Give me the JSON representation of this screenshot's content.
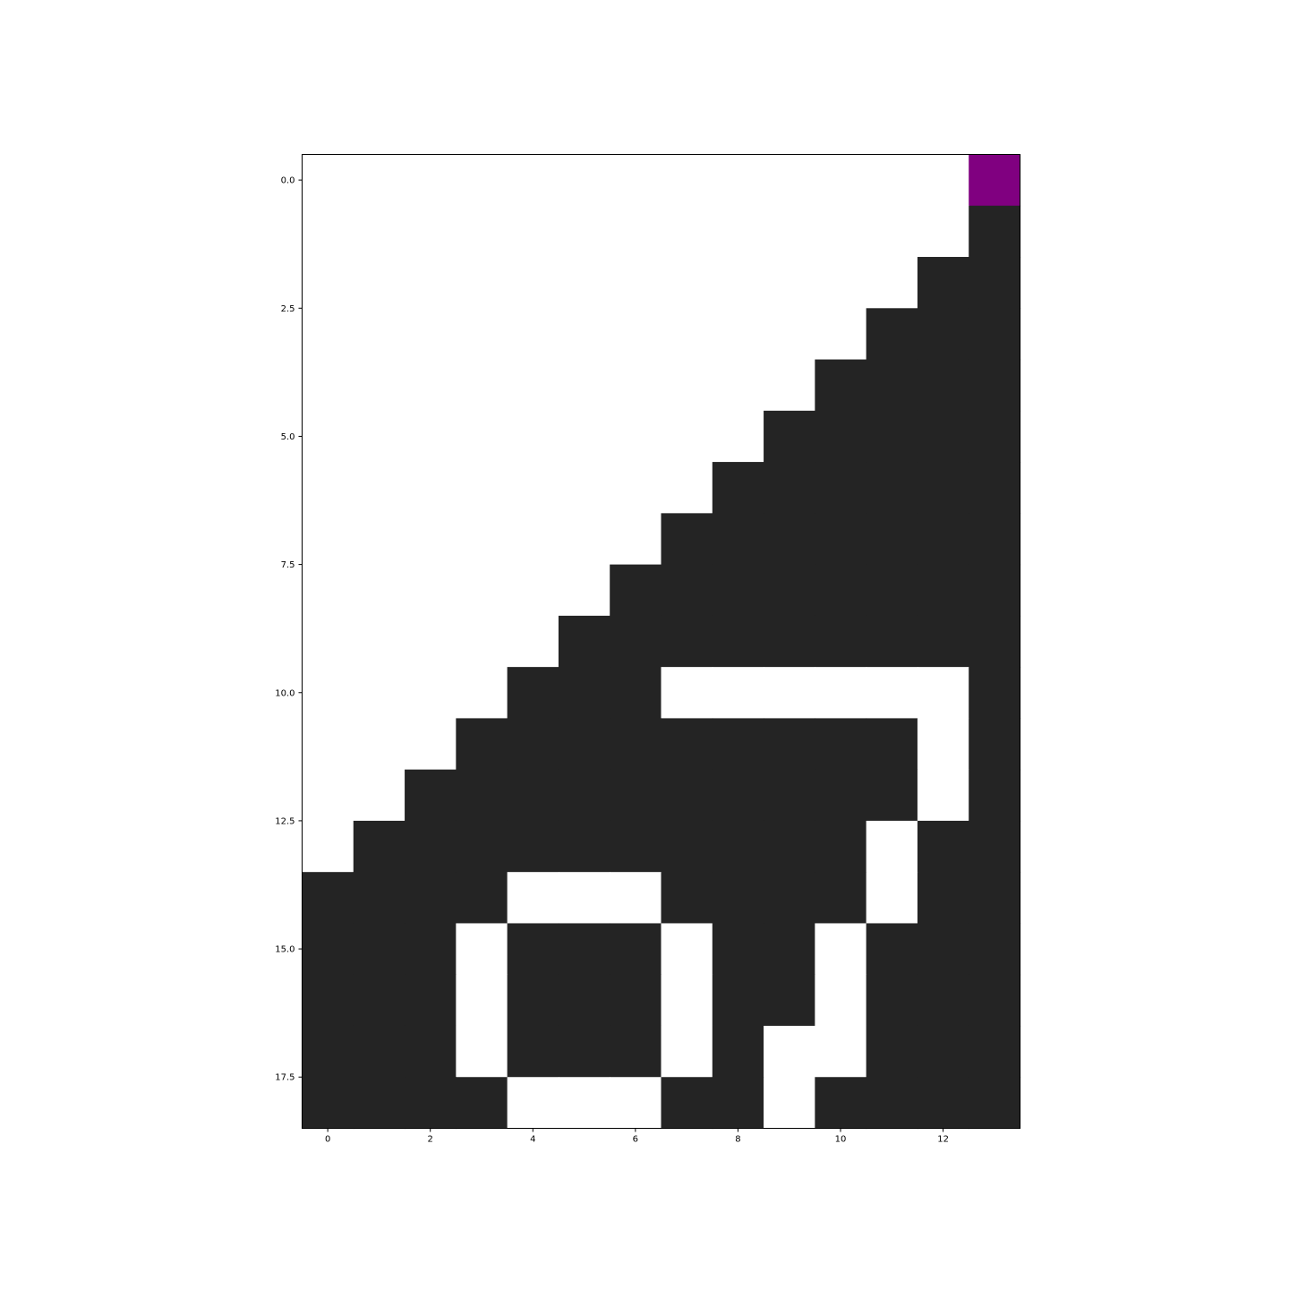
{
  "chart_data": {
    "type": "heatmap",
    "title": "",
    "xlabel": "",
    "ylabel": "",
    "n_cols": 14,
    "n_rows": 19,
    "xlim": [
      -0.5,
      13.5
    ],
    "ylim": [
      18.5,
      -0.5
    ],
    "x_ticks": [
      0,
      2,
      4,
      6,
      8,
      10,
      12
    ],
    "x_tick_labels": [
      "0",
      "2",
      "4",
      "6",
      "8",
      "10",
      "12"
    ],
    "y_ticks": [
      0,
      2.5,
      5,
      7.5,
      10,
      12.5,
      15,
      17.5
    ],
    "y_tick_labels": [
      "0.0",
      "2.5",
      "5.0",
      "7.5",
      "10.0",
      "12.5",
      "15.0",
      "17.5"
    ],
    "grid": false,
    "legend": "none",
    "colors": {
      "0": "#ffffff",
      "1": "#242424",
      "2": "#800080"
    },
    "values": [
      [
        0,
        0,
        0,
        0,
        0,
        0,
        0,
        0,
        0,
        0,
        0,
        0,
        0,
        2
      ],
      [
        0,
        0,
        0,
        0,
        0,
        0,
        0,
        0,
        0,
        0,
        0,
        0,
        0,
        1
      ],
      [
        0,
        0,
        0,
        0,
        0,
        0,
        0,
        0,
        0,
        0,
        0,
        0,
        1,
        1
      ],
      [
        0,
        0,
        0,
        0,
        0,
        0,
        0,
        0,
        0,
        0,
        0,
        1,
        1,
        1
      ],
      [
        0,
        0,
        0,
        0,
        0,
        0,
        0,
        0,
        0,
        0,
        1,
        1,
        1,
        1
      ],
      [
        0,
        0,
        0,
        0,
        0,
        0,
        0,
        0,
        0,
        1,
        1,
        1,
        1,
        1
      ],
      [
        0,
        0,
        0,
        0,
        0,
        0,
        0,
        0,
        1,
        1,
        1,
        1,
        1,
        1
      ],
      [
        0,
        0,
        0,
        0,
        0,
        0,
        0,
        1,
        1,
        1,
        1,
        1,
        1,
        1
      ],
      [
        0,
        0,
        0,
        0,
        0,
        0,
        1,
        1,
        1,
        1,
        1,
        1,
        1,
        1
      ],
      [
        0,
        0,
        0,
        0,
        0,
        1,
        1,
        1,
        1,
        1,
        1,
        1,
        1,
        1
      ],
      [
        0,
        0,
        0,
        0,
        1,
        1,
        1,
        0,
        0,
        0,
        0,
        0,
        0,
        1
      ],
      [
        0,
        0,
        0,
        1,
        1,
        1,
        1,
        1,
        1,
        1,
        1,
        1,
        0,
        1
      ],
      [
        0,
        0,
        1,
        1,
        1,
        1,
        1,
        1,
        1,
        1,
        1,
        1,
        0,
        1
      ],
      [
        0,
        1,
        1,
        1,
        1,
        1,
        1,
        1,
        1,
        1,
        1,
        0,
        1,
        1
      ],
      [
        1,
        1,
        1,
        1,
        0,
        0,
        0,
        1,
        1,
        1,
        1,
        0,
        1,
        1
      ],
      [
        1,
        1,
        1,
        0,
        1,
        1,
        1,
        0,
        1,
        1,
        0,
        1,
        1,
        1
      ],
      [
        1,
        1,
        1,
        0,
        1,
        1,
        1,
        0,
        1,
        1,
        0,
        1,
        1,
        1
      ],
      [
        1,
        1,
        1,
        0,
        1,
        1,
        1,
        0,
        1,
        0,
        0,
        1,
        1,
        1
      ],
      [
        1,
        1,
        1,
        1,
        0,
        0,
        0,
        1,
        1,
        0,
        1,
        1,
        1,
        1
      ]
    ]
  }
}
